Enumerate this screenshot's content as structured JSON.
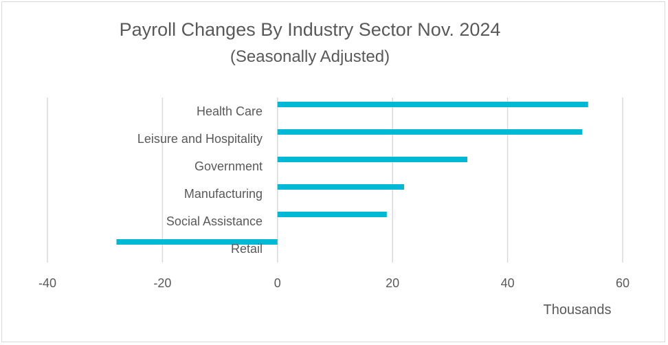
{
  "chart_data": {
    "type": "bar",
    "orientation": "horizontal",
    "title": "Payroll Changes By Industry Sector Nov. 2024",
    "subtitle": "(Seasonally Adjusted)",
    "xlabel": "Thousands",
    "ylabel": "",
    "categories": [
      "Health Care",
      "Leisure and Hospitality",
      "Government",
      "Manufacturing",
      "Social Assistance",
      "Retail"
    ],
    "values": [
      54,
      53,
      33,
      22,
      19,
      -28
    ],
    "xlim": [
      -40,
      60
    ],
    "xticks": [
      -40,
      -20,
      0,
      20,
      40,
      60
    ],
    "grid": true,
    "legend": "none",
    "bar_color": "#00b8d4",
    "grid_color": "#d9d9d9",
    "text_color": "#595959"
  }
}
